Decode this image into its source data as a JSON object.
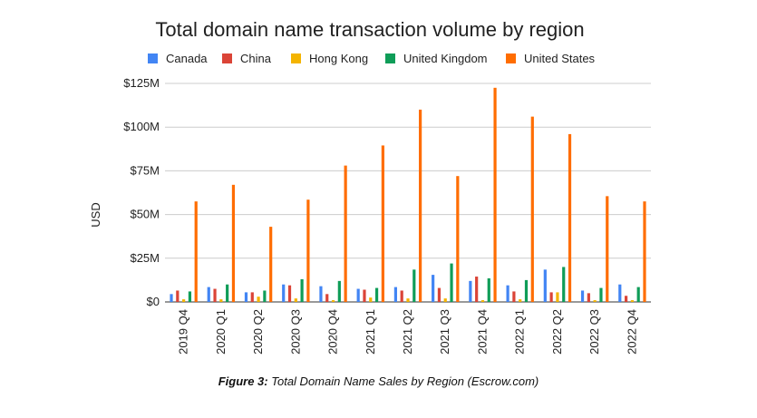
{
  "chart_data": {
    "type": "bar",
    "title": "Total domain name transaction volume by region",
    "xlabel": "",
    "ylabel": "USD",
    "ylim": [
      0,
      125
    ],
    "y_ticks": [
      "$0",
      "$25M",
      "$50M",
      "$75M",
      "$100M",
      "$125M"
    ],
    "y_tick_values": [
      0,
      25,
      50,
      75,
      100,
      125
    ],
    "grid": true,
    "legend_position": "top",
    "categories": [
      "2019 Q4",
      "2020 Q1",
      "2020 Q2",
      "2020 Q3",
      "2020 Q4",
      "2021 Q1",
      "2021 Q2",
      "2021 Q3",
      "2021 Q4",
      "2022 Q1",
      "2022 Q2",
      "2022 Q3",
      "2022 Q4"
    ],
    "series": [
      {
        "name": "Canada",
        "color": "#4285F4",
        "values": [
          4.5,
          8.5,
          5.5,
          10,
          9,
          7.5,
          8.5,
          15.5,
          12,
          9.5,
          18.5,
          6.5,
          10
        ]
      },
      {
        "name": "China",
        "color": "#DB4437",
        "values": [
          6.5,
          7.5,
          5.5,
          9.5,
          4.5,
          7,
          6.5,
          8,
          14.5,
          6,
          5.5,
          5,
          3.5
        ]
      },
      {
        "name": "Hong Kong",
        "color": "#F4B400",
        "values": [
          1.5,
          1.5,
          3,
          2,
          1,
          2.5,
          2,
          2,
          1,
          1.5,
          5.5,
          1,
          1
        ]
      },
      {
        "name": "United Kingdom",
        "color": "#0F9D58",
        "values": [
          6,
          10,
          6.5,
          13,
          12,
          8,
          18.5,
          22,
          13.5,
          12.5,
          20,
          8,
          8.5
        ]
      },
      {
        "name": "United States",
        "color": "#FF6D01",
        "values": [
          57.5,
          67,
          43,
          58.5,
          78,
          89.5,
          110,
          72,
          122.5,
          106,
          96,
          60.5,
          57.5
        ]
      }
    ]
  },
  "caption": {
    "label": "Figure 3:",
    "text": " Total Domain Name Sales by Region (Escrow.com)"
  }
}
